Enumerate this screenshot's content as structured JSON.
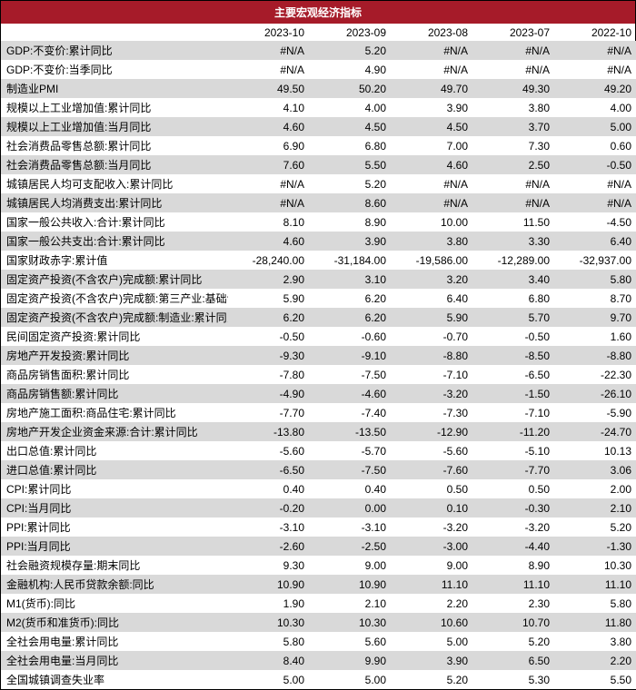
{
  "title": "主要宏观经济指标",
  "title_bg": "#a61b29",
  "title_color": "#ffffff",
  "header_bg": "#ffffff",
  "even_row_bg": "#d9d9d9",
  "odd_row_bg": "#ffffff",
  "border_color": "#000000",
  "font_size": 12,
  "label_col_width": 250,
  "num_col_width": 90,
  "columns": [
    "2023-10",
    "2023-09",
    "2023-08",
    "2023-07",
    "2022-10"
  ],
  "rows": [
    {
      "label": "GDP:不变价:累计同比",
      "cells": [
        "#N/A",
        "5.20",
        "#N/A",
        "#N/A",
        "#N/A"
      ]
    },
    {
      "label": "GDP:不变价:当季同比",
      "cells": [
        "#N/A",
        "4.90",
        "#N/A",
        "#N/A",
        "#N/A"
      ]
    },
    {
      "label": "制造业PMI",
      "cells": [
        "49.50",
        "50.20",
        "49.70",
        "49.30",
        "49.20"
      ]
    },
    {
      "label": "规模以上工业增加值:累计同比",
      "cells": [
        "4.10",
        "4.00",
        "3.90",
        "3.80",
        "4.00"
      ]
    },
    {
      "label": "规模以上工业增加值:当月同比",
      "cells": [
        "4.60",
        "4.50",
        "4.50",
        "3.70",
        "5.00"
      ]
    },
    {
      "label": "社会消费品零售总额:累计同比",
      "cells": [
        "6.90",
        "6.80",
        "7.00",
        "7.30",
        "0.60"
      ]
    },
    {
      "label": "社会消费品零售总额:当月同比",
      "cells": [
        "7.60",
        "5.50",
        "4.60",
        "2.50",
        "-0.50"
      ]
    },
    {
      "label": "城镇居民人均可支配收入:累计同比",
      "cells": [
        "#N/A",
        "5.20",
        "#N/A",
        "#N/A",
        "#N/A"
      ]
    },
    {
      "label": "城镇居民人均消费支出:累计同比",
      "cells": [
        "#N/A",
        "8.60",
        "#N/A",
        "#N/A",
        "#N/A"
      ]
    },
    {
      "label": "国家一般公共收入:合计:累计同比",
      "cells": [
        "8.10",
        "8.90",
        "10.00",
        "11.50",
        "-4.50"
      ]
    },
    {
      "label": "国家一般公共支出:合计:累计同比",
      "cells": [
        "4.60",
        "3.90",
        "3.80",
        "3.30",
        "6.40"
      ]
    },
    {
      "label": "国家财政赤字:累计值",
      "cells": [
        "-28,240.00",
        "-31,184.00",
        "-19,586.00",
        "-12,289.00",
        "-32,937.00"
      ]
    },
    {
      "label": "固定资产投资(不含农户)完成额:累计同比",
      "cells": [
        "2.90",
        "3.10",
        "3.20",
        "3.40",
        "5.80"
      ]
    },
    {
      "label": "固定资产投资(不含农户)完成额:第三产业:基础设施投",
      "cells": [
        "5.90",
        "6.20",
        "6.40",
        "6.80",
        "8.70"
      ]
    },
    {
      "label": "固定资产投资(不含农户)完成额:制造业:累计同比",
      "cells": [
        "6.20",
        "6.20",
        "5.90",
        "5.70",
        "9.70"
      ]
    },
    {
      "label": "民间固定资产投资:累计同比",
      "cells": [
        "-0.50",
        "-0.60",
        "-0.70",
        "-0.50",
        "1.60"
      ]
    },
    {
      "label": "房地产开发投资:累计同比",
      "cells": [
        "-9.30",
        "-9.10",
        "-8.80",
        "-8.50",
        "-8.80"
      ]
    },
    {
      "label": "商品房销售面积:累计同比",
      "cells": [
        "-7.80",
        "-7.50",
        "-7.10",
        "-6.50",
        "-22.30"
      ]
    },
    {
      "label": "商品房销售额:累计同比",
      "cells": [
        "-4.90",
        "-4.60",
        "-3.20",
        "-1.50",
        "-26.10"
      ]
    },
    {
      "label": "房地产施工面积:商品住宅:累计同比",
      "cells": [
        "-7.70",
        "-7.40",
        "-7.30",
        "-7.10",
        "-5.90"
      ]
    },
    {
      "label": "房地产开发企业资金来源:合计:累计同比",
      "cells": [
        "-13.80",
        "-13.50",
        "-12.90",
        "-11.20",
        "-24.70"
      ]
    },
    {
      "label": "出口总值:累计同比",
      "cells": [
        "-5.60",
        "-5.70",
        "-5.60",
        "-5.10",
        "10.13"
      ]
    },
    {
      "label": "进口总值:累计同比",
      "cells": [
        "-6.50",
        "-7.50",
        "-7.60",
        "-7.70",
        "3.06"
      ]
    },
    {
      "label": "CPI:累计同比",
      "cells": [
        "0.40",
        "0.40",
        "0.50",
        "0.50",
        "2.00"
      ]
    },
    {
      "label": "CPI:当月同比",
      "cells": [
        "-0.20",
        "0.00",
        "0.10",
        "-0.30",
        "2.10"
      ]
    },
    {
      "label": "PPI:累计同比",
      "cells": [
        "-3.10",
        "-3.10",
        "-3.20",
        "-3.20",
        "5.20"
      ]
    },
    {
      "label": "PPI:当月同比",
      "cells": [
        "-2.60",
        "-2.50",
        "-3.00",
        "-4.40",
        "-1.30"
      ]
    },
    {
      "label": "社会融资规模存量:期末同比",
      "cells": [
        "9.30",
        "9.00",
        "9.00",
        "8.90",
        "10.30"
      ]
    },
    {
      "label": "金融机构:人民币贷款余额:同比",
      "cells": [
        "10.90",
        "10.90",
        "11.10",
        "11.10",
        "11.10"
      ]
    },
    {
      "label": "M1(货币):同比",
      "cells": [
        "1.90",
        "2.10",
        "2.20",
        "2.30",
        "5.80"
      ]
    },
    {
      "label": "M2(货币和准货币):同比",
      "cells": [
        "10.30",
        "10.30",
        "10.60",
        "10.70",
        "11.80"
      ]
    },
    {
      "label": "全社会用电量:累计同比",
      "cells": [
        "5.80",
        "5.60",
        "5.00",
        "5.20",
        "3.80"
      ]
    },
    {
      "label": "全社会用电量:当月同比",
      "cells": [
        "8.40",
        "9.90",
        "3.90",
        "6.50",
        "2.20"
      ]
    },
    {
      "label": "全国城镇调查失业率",
      "cells": [
        "5.00",
        "5.00",
        "5.20",
        "5.30",
        "5.50"
      ]
    }
  ]
}
